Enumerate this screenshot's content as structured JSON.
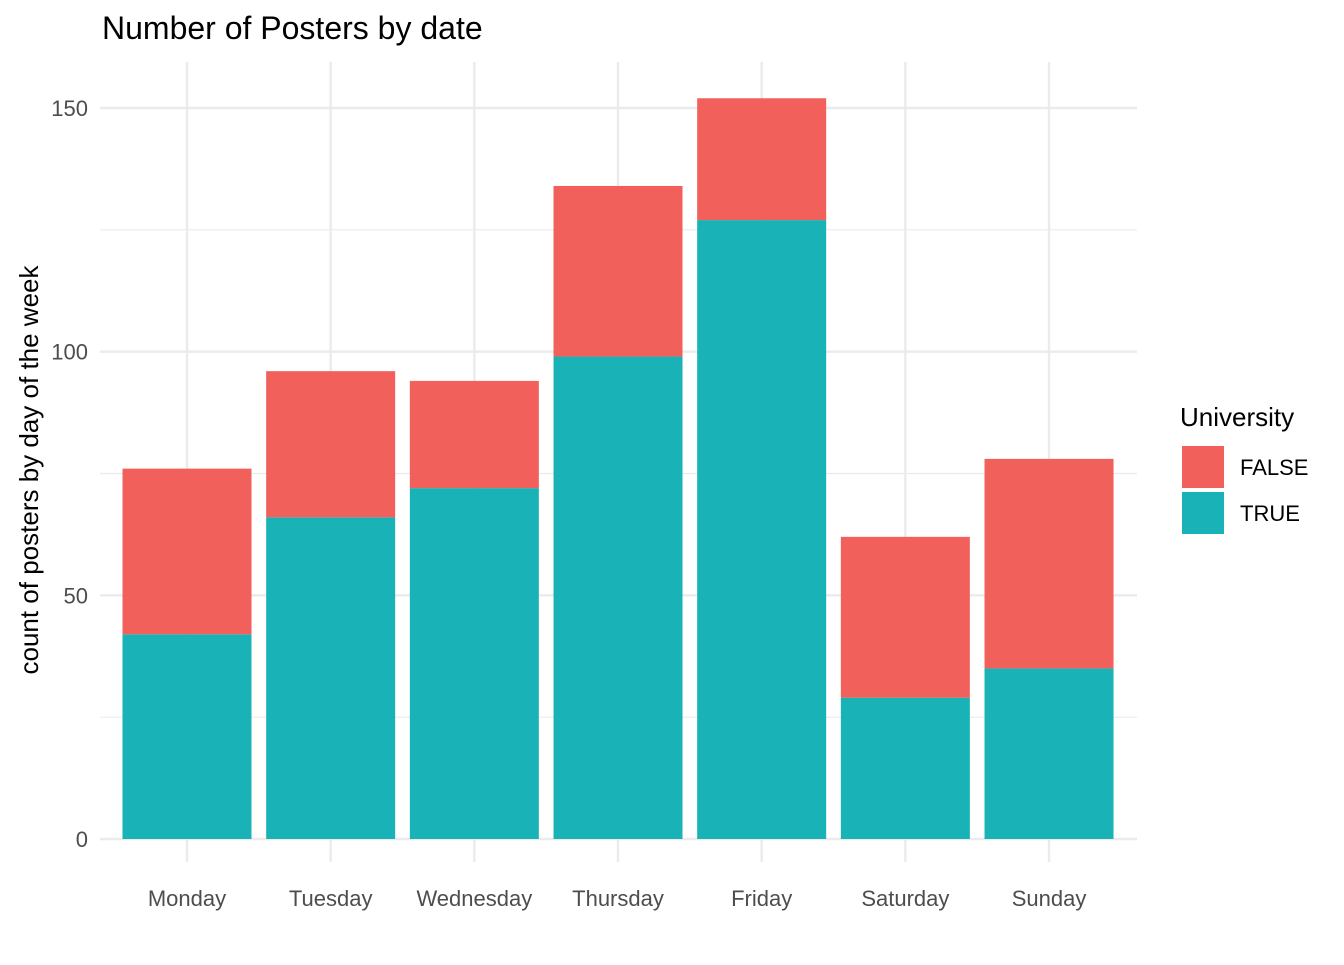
{
  "chart_data": {
    "type": "bar",
    "stacked": true,
    "title": "Number of Posters by date",
    "xlabel": "",
    "ylabel": "count of posters by day of the week",
    "categories": [
      "Monday",
      "Tuesday",
      "Wednesday",
      "Thursday",
      "Friday",
      "Saturday",
      "Sunday"
    ],
    "series": [
      {
        "name": "TRUE",
        "values": [
          42,
          66,
          72,
          99,
          127,
          29,
          35
        ],
        "color": "#19b3b7"
      },
      {
        "name": "FALSE",
        "values": [
          34,
          30,
          22,
          35,
          25,
          33,
          43
        ],
        "color": "#f2605b"
      }
    ],
    "totals": [
      76,
      96,
      94,
      134,
      152,
      62,
      78
    ],
    "ylim": [
      0,
      160
    ],
    "yticks": [
      0,
      50,
      100,
      150
    ],
    "grid": true,
    "legend": {
      "title": "University",
      "position": "right",
      "entries": [
        {
          "name": "FALSE",
          "color": "#f2605b"
        },
        {
          "name": "TRUE",
          "color": "#19b3b7"
        }
      ]
    }
  }
}
